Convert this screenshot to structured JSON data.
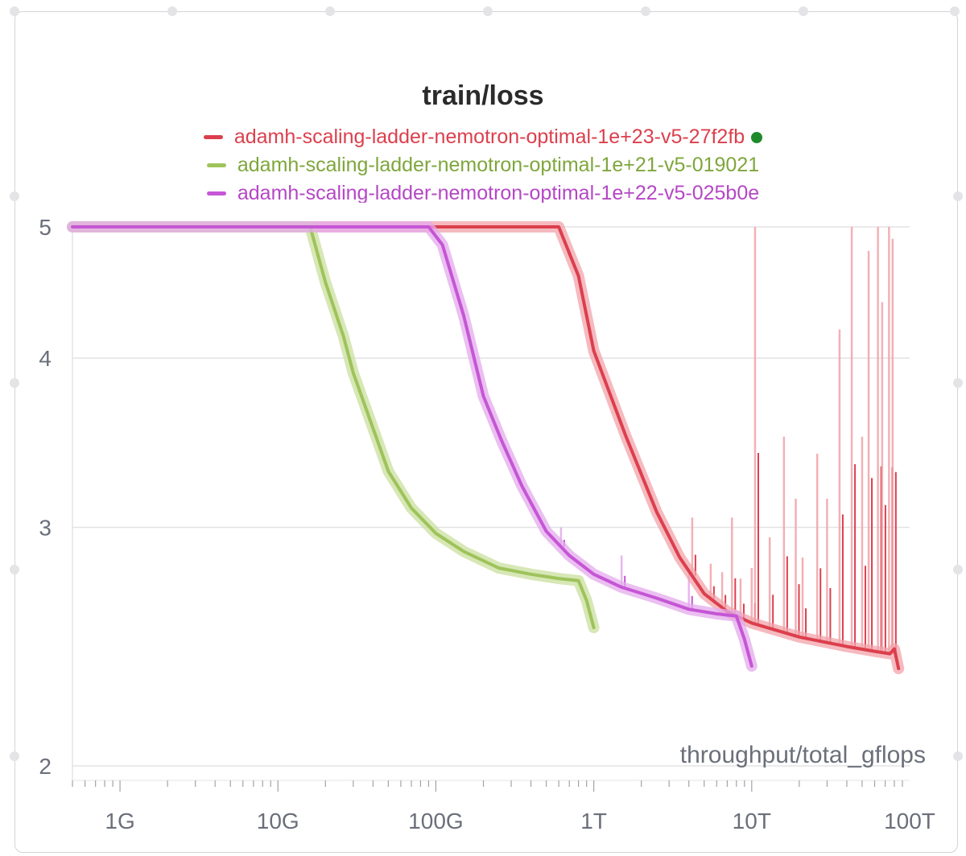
{
  "chart_data": {
    "type": "line",
    "title": "train/loss",
    "xlabel": "throughput/total_gflops",
    "ylabel": "",
    "x_scale": "log",
    "y_scale": "log",
    "xlim": [
      500000000.0,
      100000000000000.0
    ],
    "ylim": [
      2,
      5
    ],
    "x_ticks": [
      {
        "value": 1000000000.0,
        "label": "1G"
      },
      {
        "value": 10000000000.0,
        "label": "10G"
      },
      {
        "value": 100000000000.0,
        "label": "100G"
      },
      {
        "value": 1000000000000.0,
        "label": "1T"
      },
      {
        "value": 10000000000000.0,
        "label": "10T"
      },
      {
        "value": 100000000000000.0,
        "label": "100T"
      }
    ],
    "y_ticks": [
      {
        "value": 2,
        "label": "2"
      },
      {
        "value": 3,
        "label": "3"
      },
      {
        "value": 4,
        "label": "4"
      },
      {
        "value": 5,
        "label": "5"
      }
    ],
    "grid": true,
    "legend_position": "top-center",
    "series": [
      {
        "name": "adamh-scaling-ladder-nemotron-optimal-1e+23-v5-27f2fb",
        "color": "#dc3f4d",
        "band_color": "#f2a3aa",
        "status": "running",
        "points": [
          [
            500000000.0,
            5
          ],
          [
            600000000000.0,
            5
          ],
          [
            800000000000.0,
            4.6
          ],
          [
            1000000000000.0,
            4.05
          ],
          [
            1600000000000.0,
            3.5
          ],
          [
            2500000000000.0,
            3.08
          ],
          [
            3500000000000.0,
            2.85
          ],
          [
            5000000000000.0,
            2.68
          ],
          [
            7000000000000.0,
            2.6
          ],
          [
            10000000000000.0,
            2.55
          ],
          [
            20000000000000.0,
            2.49
          ],
          [
            40000000000000.0,
            2.45
          ],
          [
            60000000000000.0,
            2.43
          ],
          [
            75000000000000.0,
            2.42
          ],
          [
            80000000000000.0,
            2.44
          ],
          [
            85000000000000.0,
            2.36
          ]
        ]
      },
      {
        "name": "adamh-scaling-ladder-nemotron-optimal-1e+21-v5-019021",
        "color": "#9ec35a",
        "band_color": "#c9df9e",
        "points": [
          [
            500000000.0,
            5
          ],
          [
            16000000000.0,
            5
          ],
          [
            20000000000.0,
            4.55
          ],
          [
            26000000000.0,
            4.15
          ],
          [
            30000000000.0,
            3.9
          ],
          [
            40000000000.0,
            3.55
          ],
          [
            50000000000.0,
            3.3
          ],
          [
            70000000000.0,
            3.1
          ],
          [
            100000000000.0,
            2.97
          ],
          [
            150000000000.0,
            2.88
          ],
          [
            250000000000.0,
            2.8
          ],
          [
            400000000000.0,
            2.77
          ],
          [
            600000000000.0,
            2.75
          ],
          [
            800000000000.0,
            2.74
          ],
          [
            900000000000.0,
            2.65
          ],
          [
            1000000000000.0,
            2.53
          ]
        ]
      },
      {
        "name": "adamh-scaling-ladder-nemotron-optimal-1e+22-v5-025b0e",
        "color": "#c556d5",
        "band_color": "#e4a9ec",
        "points": [
          [
            500000000.0,
            5
          ],
          [
            90000000000.0,
            5
          ],
          [
            110000000000.0,
            4.85
          ],
          [
            150000000000.0,
            4.3
          ],
          [
            200000000000.0,
            3.75
          ],
          [
            260000000000.0,
            3.48
          ],
          [
            350000000000.0,
            3.22
          ],
          [
            500000000000.0,
            2.98
          ],
          [
            700000000000.0,
            2.86
          ],
          [
            1000000000000.0,
            2.77
          ],
          [
            1500000000000.0,
            2.71
          ],
          [
            2500000000000.0,
            2.66
          ],
          [
            4000000000000.0,
            2.61
          ],
          [
            6000000000000.0,
            2.59
          ],
          [
            8000000000000.0,
            2.58
          ],
          [
            9000000000000.0,
            2.48
          ],
          [
            10000000000000.0,
            2.37
          ]
        ]
      }
    ],
    "spikes": [
      {
        "series": 0,
        "x": 4200000000000.0,
        "y": 3.05
      },
      {
        "series": 0,
        "x": 5500000000000.0,
        "y": 2.82
      },
      {
        "series": 0,
        "x": 6500000000000.0,
        "y": 2.78
      },
      {
        "series": 0,
        "x": 7500000000000.0,
        "y": 3.05
      },
      {
        "series": 0,
        "x": 8500000000000.0,
        "y": 2.75
      },
      {
        "series": 0,
        "x": 10000000000000.0,
        "y": 2.8
      },
      {
        "series": 0,
        "x": 10500000000000.0,
        "y": 5
      },
      {
        "series": 0,
        "x": 13000000000000.0,
        "y": 2.95
      },
      {
        "series": 0,
        "x": 16000000000000.0,
        "y": 3.5
      },
      {
        "series": 0,
        "x": 19000000000000.0,
        "y": 3.15
      },
      {
        "series": 0,
        "x": 21000000000000.0,
        "y": 2.85
      },
      {
        "series": 0,
        "x": 26000000000000.0,
        "y": 3.4
      },
      {
        "series": 0,
        "x": 30000000000000.0,
        "y": 3.15
      },
      {
        "series": 0,
        "x": 36000000000000.0,
        "y": 4.2
      },
      {
        "series": 0,
        "x": 43000000000000.0,
        "y": 5
      },
      {
        "series": 0,
        "x": 50000000000000.0,
        "y": 3.5
      },
      {
        "series": 0,
        "x": 55000000000000.0,
        "y": 4.8
      },
      {
        "series": 0,
        "x": 63000000000000.0,
        "y": 5
      },
      {
        "series": 0,
        "x": 67000000000000.0,
        "y": 4.4
      },
      {
        "series": 0,
        "x": 74000000000000.0,
        "y": 5
      },
      {
        "series": 0,
        "x": 78000000000000.0,
        "y": 4.9
      },
      {
        "series": 2,
        "x": 620000000000.0,
        "y": 3.0
      },
      {
        "series": 2,
        "x": 1500000000000.0,
        "y": 2.86
      },
      {
        "series": 2,
        "x": 4000000000000.0,
        "y": 2.78
      }
    ]
  }
}
